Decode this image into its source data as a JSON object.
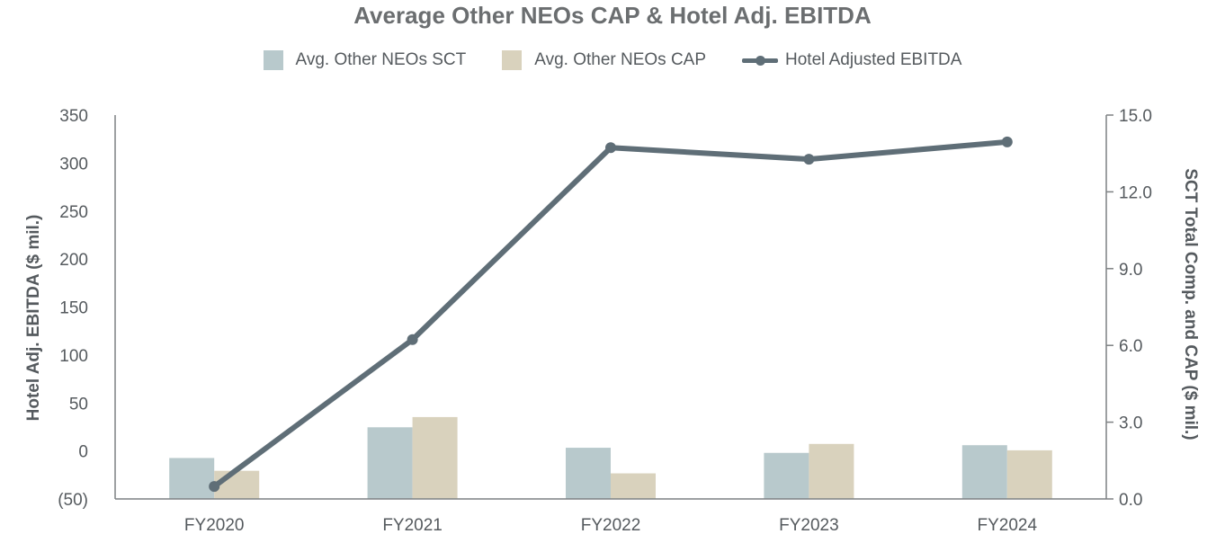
{
  "chart_data": {
    "type": "bar",
    "title": "Average Other NEOs CAP & Hotel Adj. EBITDA",
    "categories": [
      "FY2020",
      "FY2021",
      "FY2022",
      "FY2023",
      "FY2024"
    ],
    "series": [
      {
        "name": "Avg. Other NEOs SCT",
        "type": "bar",
        "axis": "right",
        "color": "#b8c9cc",
        "values": [
          1.6,
          2.8,
          2.0,
          1.8,
          2.1
        ]
      },
      {
        "name": "Avg. Other NEOs CAP",
        "type": "bar",
        "axis": "right",
        "color": "#d9d2bd",
        "values": [
          1.1,
          3.2,
          1.0,
          2.15,
          1.9
        ]
      },
      {
        "name": "Hotel Adjusted EBITDA",
        "type": "line",
        "axis": "left",
        "color": "#5f6e77",
        "values": [
          -37,
          116,
          316,
          304,
          322
        ]
      }
    ],
    "left_axis": {
      "label": "Hotel Adj. EBITDA ($ mil.)",
      "ylim": [
        -50,
        350
      ],
      "ticks": [
        350,
        300,
        250,
        200,
        150,
        100,
        50,
        0,
        -50
      ],
      "tick_labels": [
        "350",
        "300",
        "250",
        "200",
        "150",
        "100",
        "50",
        "0",
        "(50)"
      ]
    },
    "right_axis": {
      "label": "SCT Total Comp. and CAP ($ mil.)",
      "ylim": [
        0,
        15
      ],
      "ticks": [
        15,
        12,
        9,
        6,
        3,
        0
      ],
      "tick_labels": [
        "15.0",
        "12.0",
        "9.0",
        "6.0",
        "3.0",
        "0.0"
      ]
    },
    "legend_position": "top-center",
    "grid": false
  }
}
